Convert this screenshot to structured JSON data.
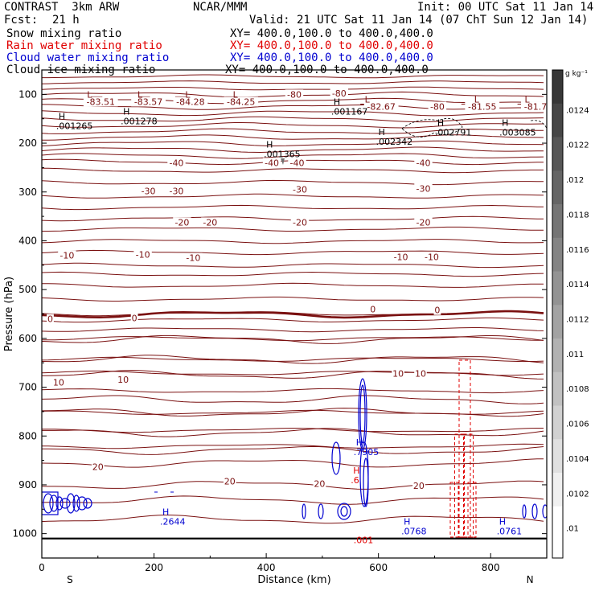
{
  "header": {
    "title": "CONTRAST  3km ARW",
    "fcst_label": "Fcst:",
    "fcst_value": "21 h",
    "center": "NCAR/MMM",
    "init": "Init: 00 UTC Sat 11 Jan 14",
    "valid": "Valid: 21 UTC Sat 11 Jan 14 (07 ChT Sun 12 Jan 14)"
  },
  "legend": [
    {
      "name": "Snow mixing ratio",
      "xy": "XY= 400.0,100.0 to 400.0,400.0",
      "color": "#000000"
    },
    {
      "name": "Rain water mixing ratio",
      "xy": "XY= 400.0,100.0 to 400.0,400.0",
      "color": "#e00000"
    },
    {
      "name": "Cloud water mixing ratio",
      "xy": "XY= 400.0,100.0 to 400.0,400.0",
      "color": "#0000d0"
    },
    {
      "name": "Cloud ice mixing ratio",
      "xy": "XY= 400.0,100.0 to 400.0,400.0",
      "color": "#000000"
    }
  ],
  "colors": {
    "isotherm": "#7a1010",
    "rain": "#e00000",
    "cloud_water": "#0000d0",
    "ink": "#000000"
  },
  "chart_data": {
    "type": "contour",
    "xlabel": "Distance (km)",
    "ylabel": "Pressure (hPa)",
    "xlim": [
      0,
      900
    ],
    "ylim": [
      1050,
      50
    ],
    "x_ticks": [
      "0",
      "200",
      "400",
      "600",
      "800"
    ],
    "y_ticks": [
      "100",
      "200",
      "300",
      "400",
      "500",
      "600",
      "700",
      "800",
      "900",
      "1000"
    ],
    "x_end_labels": {
      "left": "S",
      "right": "N"
    },
    "colorbar": {
      "unit": "g kg⁻¹",
      "ticks": [
        ".0124",
        ".0122",
        ".012",
        ".0118",
        ".0116",
        ".0114",
        ".0112",
        ".011",
        ".0108",
        ".0106",
        ".0104",
        ".0102",
        ".01"
      ]
    },
    "temperature_labels": [
      {
        "text": "-83.51",
        "x": 105,
        "p": 115
      },
      {
        "text": "-83.57",
        "x": 190,
        "p": 115
      },
      {
        "text": "-84.28",
        "x": 265,
        "p": 115
      },
      {
        "text": "-84.25",
        "x": 355,
        "p": 115
      },
      {
        "text": "-80",
        "x": 450,
        "p": 100
      },
      {
        "text": "-80",
        "x": 530,
        "p": 98
      },
      {
        "text": "-82.67",
        "x": 605,
        "p": 125
      },
      {
        "text": "-80",
        "x": 705,
        "p": 125
      },
      {
        "text": "-81.55",
        "x": 785,
        "p": 125
      },
      {
        "text": "-81.7",
        "x": 880,
        "p": 125
      },
      {
        "text": "-40",
        "x": 240,
        "p": 240
      },
      {
        "text": "-40",
        "x": 410,
        "p": 240
      },
      {
        "text": "-40",
        "x": 455,
        "p": 240
      },
      {
        "text": "-40",
        "x": 680,
        "p": 240
      },
      {
        "text": "-30",
        "x": 190,
        "p": 298
      },
      {
        "text": "-30",
        "x": 240,
        "p": 298
      },
      {
        "text": "-30",
        "x": 460,
        "p": 295
      },
      {
        "text": "-30",
        "x": 680,
        "p": 293
      },
      {
        "text": "-20",
        "x": 250,
        "p": 362
      },
      {
        "text": "-20",
        "x": 300,
        "p": 362
      },
      {
        "text": "-20",
        "x": 460,
        "p": 362
      },
      {
        "text": "-20",
        "x": 680,
        "p": 362
      },
      {
        "text": "-10",
        "x": 45,
        "p": 430
      },
      {
        "text": "-10",
        "x": 180,
        "p": 428
      },
      {
        "text": "-10",
        "x": 270,
        "p": 435
      },
      {
        "text": "-10",
        "x": 640,
        "p": 433
      },
      {
        "text": "-10",
        "x": 695,
        "p": 433
      },
      {
        "text": "0",
        "x": 15,
        "p": 560
      },
      {
        "text": "0",
        "x": 165,
        "p": 558
      },
      {
        "text": "0",
        "x": 590,
        "p": 540
      },
      {
        "text": "0",
        "x": 705,
        "p": 542
      },
      {
        "text": "10",
        "x": 30,
        "p": 690
      },
      {
        "text": "10",
        "x": 145,
        "p": 684
      },
      {
        "text": "10",
        "x": 635,
        "p": 672
      },
      {
        "text": "10",
        "x": 675,
        "p": 672
      },
      {
        "text": "20",
        "x": 100,
        "p": 863
      },
      {
        "text": "20",
        "x": 335,
        "p": 893
      },
      {
        "text": "20",
        "x": 495,
        "p": 898
      },
      {
        "text": "20",
        "x": 672,
        "p": 902
      }
    ],
    "max_min_labels": [
      {
        "mark": "H",
        "value": ".001265",
        "x": 30,
        "p": 155
      },
      {
        "mark": "H",
        "value": ".001278",
        "x": 145,
        "p": 145
      },
      {
        "mark": "H",
        "value": ".001167",
        "x": 520,
        "p": 125
      },
      {
        "mark": "H",
        "value": ".001365",
        "x": 400,
        "p": 212
      },
      {
        "mark": "H",
        "value": ".002342",
        "x": 600,
        "p": 187
      },
      {
        "mark": "H",
        "value": ".002791",
        "x": 705,
        "p": 168
      },
      {
        "mark": "H",
        "value": ".003085",
        "x": 820,
        "p": 168
      },
      {
        "mark": "H",
        "value": ".2644",
        "x": 215,
        "p": 965
      },
      {
        "mark": "H",
        "value": ".7905",
        "x": 560,
        "p": 823
      },
      {
        "mark": "H",
        "value": ".6",
        "x": 555,
        "p": 880
      },
      {
        "mark": "H",
        "value": ".0768",
        "x": 645,
        "p": 985
      },
      {
        "mark": "H",
        "value": ".0761",
        "x": 815,
        "p": 985
      },
      {
        "mark": "",
        "value": ".001",
        "x": 560,
        "p": 1003
      }
    ],
    "low_marks": [
      {
        "mark": "L",
        "x": 85,
        "p": 100
      },
      {
        "mark": "L",
        "x": 175,
        "p": 100
      },
      {
        "mark": "L",
        "x": 260,
        "p": 100
      },
      {
        "mark": "L",
        "x": 345,
        "p": 100
      },
      {
        "mark": "L",
        "x": 580,
        "p": 110
      },
      {
        "mark": "L",
        "x": 775,
        "p": 110
      },
      {
        "mark": "L",
        "x": 865,
        "p": 110
      }
    ]
  }
}
